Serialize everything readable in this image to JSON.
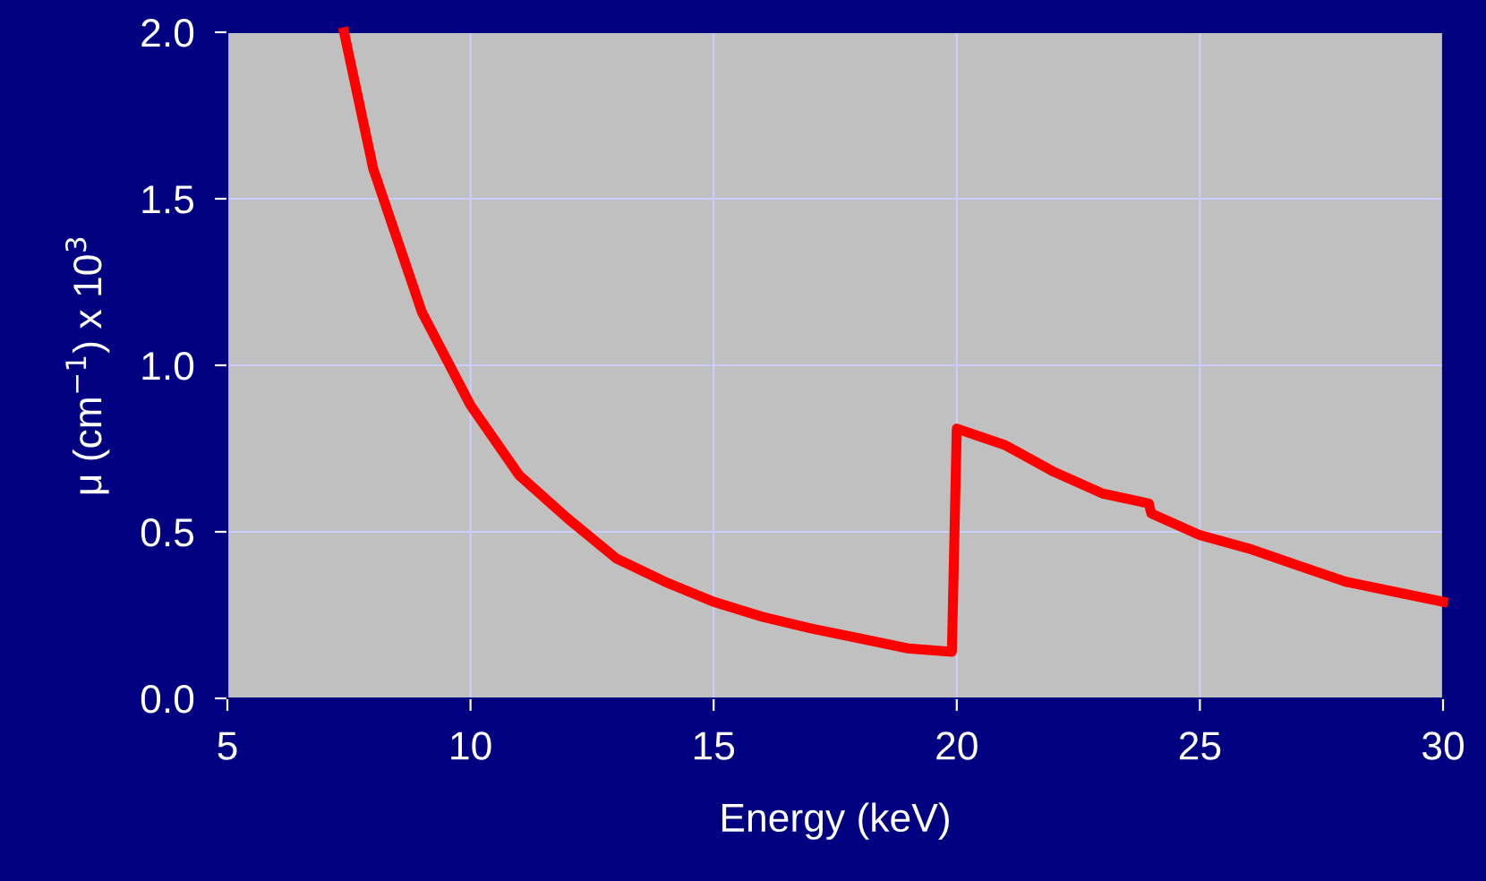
{
  "chart_data": {
    "type": "line",
    "xlabel": "Energy (keV)",
    "ylabel": "μ (cm$^{−1}$) x 10$^{3}$",
    "x": [
      7.4,
      8,
      9,
      10,
      11,
      12,
      13,
      14,
      15,
      16,
      17,
      18,
      19,
      19.9,
      20,
      21,
      22,
      23,
      23.95,
      24,
      25,
      26,
      27,
      28,
      30
    ],
    "series": [
      {
        "color": "#ff0000",
        "values": [
          2.0,
          1.59,
          1.16,
          0.88,
          0.67,
          0.54,
          0.42,
          0.35,
          0.29,
          0.245,
          0.21,
          0.18,
          0.15,
          0.14,
          0.81,
          0.76,
          0.68,
          0.615,
          0.585,
          0.555,
          0.49,
          0.45,
          0.4,
          0.35,
          0.29
        ]
      }
    ],
    "xlim": [
      5,
      30
    ],
    "xticks": [
      5,
      10,
      15,
      20,
      25,
      30
    ],
    "ylim": [
      0,
      2.0
    ],
    "yticks": [
      {
        "value": 0,
        "label": "0.0"
      },
      {
        "value": 0.5,
        "label": "0.5"
      },
      {
        "value": 1.0,
        "label": "1.0"
      },
      {
        "value": 1.5,
        "label": "1.5"
      },
      {
        "value": 2.0,
        "label": "2.0"
      }
    ],
    "grid": true,
    "marker": "none",
    "line_style": "solid"
  }
}
